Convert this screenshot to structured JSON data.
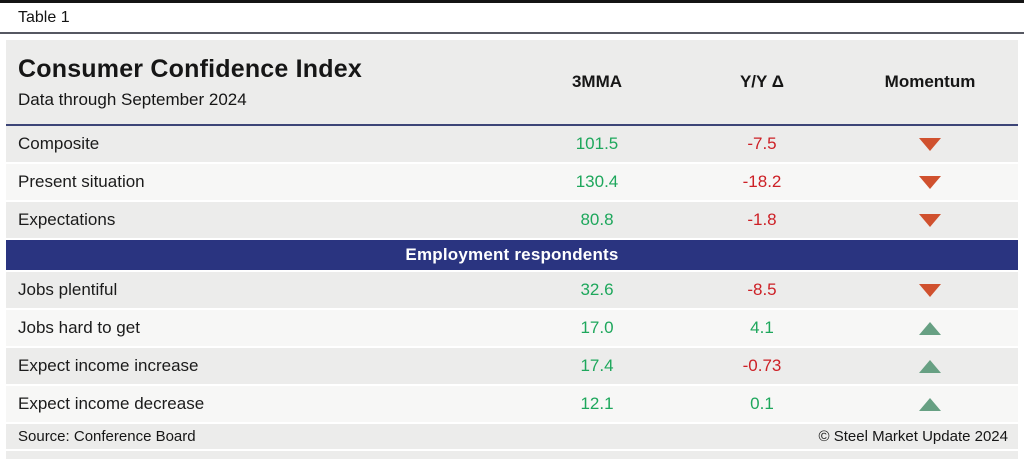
{
  "page": {
    "table_label": "Table 1"
  },
  "header": {
    "title": "Consumer Confidence Index",
    "subtitle": "Data through September 2024",
    "columns": [
      "3MMA",
      "Y/Y Δ",
      "Momentum"
    ]
  },
  "rows": [
    {
      "label": "Composite",
      "mma": "101.5",
      "mma_class": "val-pos",
      "yoy": "-7.5",
      "yoy_class": "val-neg",
      "momentum": "tri-down"
    },
    {
      "label": "Present situation",
      "mma": "130.4",
      "mma_class": "val-pos",
      "yoy": "-18.2",
      "yoy_class": "val-neg",
      "momentum": "tri-down"
    },
    {
      "label": "Expectations",
      "mma": "80.8",
      "mma_class": "val-pos",
      "yoy": "-1.8",
      "yoy_class": "val-neg",
      "momentum": "tri-down"
    }
  ],
  "section_banner": "Employment respondents",
  "employment_rows": [
    {
      "label": "Jobs plentiful",
      "mma": "32.6",
      "mma_class": "val-pos",
      "yoy": "-8.5",
      "yoy_class": "val-neg",
      "momentum": "tri-down"
    },
    {
      "label": "Jobs hard to get",
      "mma": "17.0",
      "mma_class": "val-pos",
      "yoy": "4.1",
      "yoy_class": "val-pos",
      "momentum": "tri-up"
    },
    {
      "label": "Expect income increase",
      "mma": "17.4",
      "mma_class": "val-pos",
      "yoy": "-0.73",
      "yoy_class": "val-neg",
      "momentum": "tri-up"
    },
    {
      "label": "Expect income decrease",
      "mma": "12.1",
      "mma_class": "val-pos",
      "yoy": "0.1",
      "yoy_class": "val-pos",
      "momentum": "tri-up"
    }
  ],
  "footer": {
    "source": "Source: Conference Board",
    "copyright": "© Steel Market Update 2024"
  },
  "colors": {
    "banner_navy": "#2a3480",
    "positive_green": "#1ea75c",
    "negative_red": "#cd2026",
    "momentum_down_orange": "#d0512e",
    "momentum_up_sage": "#67a083",
    "row_gray": "#ececeb",
    "row_light": "#f7f7f6"
  }
}
